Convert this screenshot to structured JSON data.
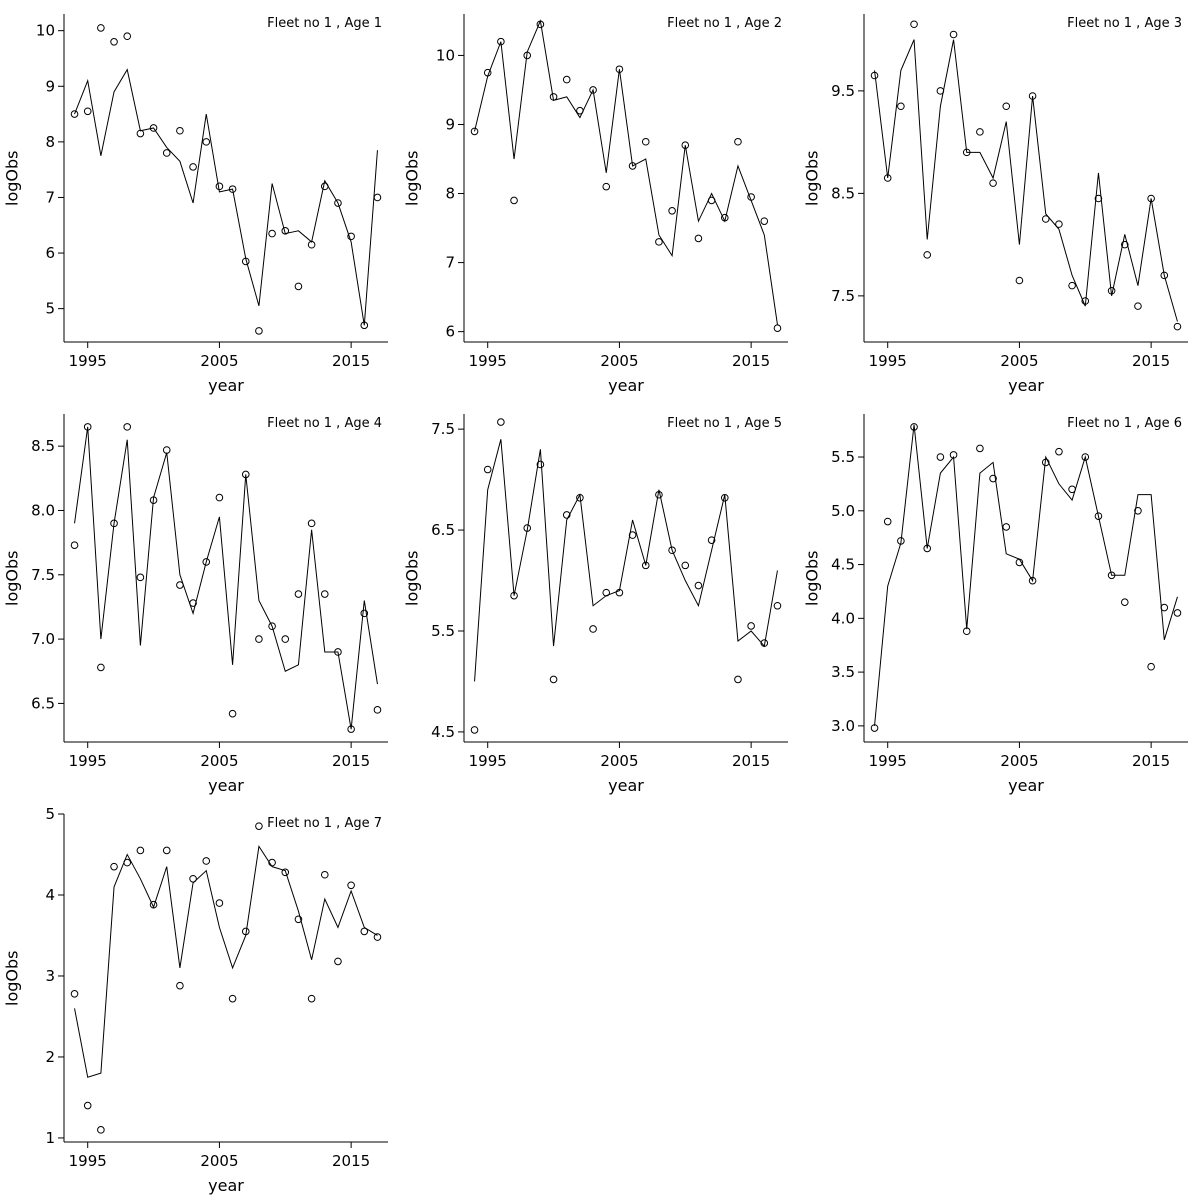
{
  "page": {
    "background": "#ffffff"
  },
  "colors": {
    "line": "#000000",
    "marker": "#000000",
    "text": "#000000"
  },
  "years": [
    1994,
    1995,
    1996,
    1997,
    1998,
    1999,
    2000,
    2001,
    2002,
    2003,
    2004,
    2005,
    2006,
    2007,
    2008,
    2009,
    2010,
    2011,
    2012,
    2013,
    2014,
    2015,
    2016,
    2017
  ],
  "chart_data": [
    {
      "type": "line",
      "title": "Fleet no 1 , Age 1",
      "xlabel": "year",
      "ylabel": "logObs",
      "xlim": [
        1993.2,
        2017.8
      ],
      "ylim": [
        4.4,
        10.3
      ],
      "xtick_values": [
        1995,
        2005,
        2015
      ],
      "xtick_labels": [
        "1995",
        "2005",
        "2015"
      ],
      "ytick_values": [
        5,
        6,
        7,
        8,
        9,
        10
      ],
      "ytick_labels": [
        "5",
        "6",
        "7",
        "8",
        "9",
        "10"
      ],
      "series": [
        {
          "name": "observations",
          "style": "points",
          "marker": "open-circle",
          "values": [
            8.5,
            8.55,
            10.05,
            9.8,
            9.9,
            8.15,
            8.25,
            7.8,
            8.2,
            7.55,
            8.0,
            7.2,
            7.15,
            5.85,
            4.6,
            6.35,
            6.4,
            5.4,
            6.15,
            7.2,
            6.9,
            6.3,
            4.7,
            7.0
          ]
        },
        {
          "name": "fit",
          "style": "line",
          "values": [
            8.5,
            9.1,
            7.75,
            8.9,
            9.3,
            8.2,
            8.25,
            7.9,
            7.65,
            6.9,
            8.5,
            7.1,
            7.15,
            5.9,
            5.05,
            7.25,
            6.35,
            6.4,
            6.2,
            7.3,
            6.9,
            6.2,
            4.7,
            7.85
          ]
        }
      ]
    },
    {
      "type": "line",
      "title": "Fleet no 1 , Age 2",
      "xlabel": "year",
      "ylabel": "logObs",
      "xlim": [
        1993.2,
        2017.8
      ],
      "ylim": [
        5.85,
        10.6
      ],
      "xtick_values": [
        1995,
        2005,
        2015
      ],
      "xtick_labels": [
        "1995",
        "2005",
        "2015"
      ],
      "ytick_values": [
        6,
        7,
        8,
        9,
        10
      ],
      "ytick_labels": [
        "6",
        "7",
        "8",
        "9",
        "10"
      ],
      "series": [
        {
          "name": "observations",
          "style": "points",
          "marker": "open-circle",
          "values": [
            8.9,
            9.75,
            10.2,
            7.9,
            10.0,
            10.45,
            9.4,
            9.65,
            9.2,
            9.5,
            8.1,
            9.8,
            8.4,
            8.75,
            7.3,
            7.75,
            8.7,
            7.35,
            7.9,
            7.65,
            8.75,
            7.95,
            7.6,
            6.05
          ]
        },
        {
          "name": "fit",
          "style": "line",
          "values": [
            8.9,
            9.7,
            10.2,
            8.5,
            10.05,
            10.5,
            9.35,
            9.4,
            9.1,
            9.5,
            8.3,
            9.8,
            8.4,
            8.5,
            7.4,
            7.1,
            8.7,
            7.6,
            8.0,
            7.6,
            8.4,
            7.9,
            7.4,
            6.1
          ]
        }
      ]
    },
    {
      "type": "line",
      "title": "Fleet no 1 , Age 3",
      "xlabel": "year",
      "ylabel": "logObs",
      "xlim": [
        1993.2,
        2017.8
      ],
      "ylim": [
        7.05,
        10.25
      ],
      "xtick_values": [
        1995,
        2005,
        2015
      ],
      "xtick_labels": [
        "1995",
        "2005",
        "2015"
      ],
      "ytick_values": [
        7.5,
        8.5,
        9.5
      ],
      "ytick_labels": [
        "7.5",
        "8.5",
        "9.5"
      ],
      "series": [
        {
          "name": "observations",
          "style": "points",
          "marker": "open-circle",
          "values": [
            9.65,
            8.65,
            9.35,
            10.15,
            7.9,
            9.5,
            10.05,
            8.9,
            9.1,
            8.6,
            9.35,
            7.65,
            9.45,
            8.25,
            8.2,
            7.6,
            7.45,
            8.45,
            7.55,
            8.0,
            7.4,
            8.45,
            7.7,
            7.2
          ]
        },
        {
          "name": "fit",
          "style": "line",
          "values": [
            9.7,
            8.65,
            9.7,
            10.0,
            8.05,
            9.35,
            10.0,
            8.9,
            8.9,
            8.65,
            9.2,
            8.0,
            9.45,
            8.3,
            8.15,
            7.7,
            7.4,
            8.7,
            7.5,
            8.1,
            7.6,
            8.45,
            7.7,
            7.25
          ]
        }
      ]
    },
    {
      "type": "line",
      "title": "Fleet no 1 , Age 4",
      "xlabel": "year",
      "ylabel": "logObs",
      "xlim": [
        1993.2,
        2017.8
      ],
      "ylim": [
        6.2,
        8.75
      ],
      "xtick_values": [
        1995,
        2005,
        2015
      ],
      "xtick_labels": [
        "1995",
        "2005",
        "2015"
      ],
      "ytick_values": [
        6.5,
        7.0,
        7.5,
        8.0,
        8.5
      ],
      "ytick_labels": [
        "6.5",
        "7.0",
        "7.5",
        "8.0",
        "8.5"
      ],
      "series": [
        {
          "name": "observations",
          "style": "points",
          "marker": "open-circle",
          "values": [
            7.73,
            8.65,
            6.78,
            7.9,
            8.65,
            7.48,
            8.08,
            8.47,
            7.42,
            7.28,
            7.6,
            8.1,
            6.42,
            8.28,
            7.0,
            7.1,
            7.0,
            7.35,
            7.9,
            7.35,
            6.9,
            6.3,
            7.2,
            6.45
          ]
        },
        {
          "name": "fit",
          "style": "line",
          "values": [
            7.9,
            8.65,
            7.0,
            7.9,
            8.55,
            6.95,
            8.1,
            8.45,
            7.5,
            7.2,
            7.6,
            7.95,
            6.8,
            8.28,
            7.3,
            7.1,
            6.75,
            6.8,
            7.85,
            6.9,
            6.9,
            6.3,
            7.3,
            6.65
          ]
        }
      ]
    },
    {
      "type": "line",
      "title": "Fleet no 1 , Age 5",
      "xlabel": "year",
      "ylabel": "logObs",
      "xlim": [
        1993.2,
        2017.8
      ],
      "ylim": [
        4.4,
        7.65
      ],
      "xtick_values": [
        1995,
        2005,
        2015
      ],
      "xtick_labels": [
        "1995",
        "2005",
        "2015"
      ],
      "ytick_values": [
        4.5,
        5.5,
        6.5,
        7.5
      ],
      "ytick_labels": [
        "4.5",
        "5.5",
        "6.5",
        "7.5"
      ],
      "series": [
        {
          "name": "observations",
          "style": "points",
          "marker": "open-circle",
          "values": [
            4.52,
            7.1,
            7.57,
            5.85,
            6.52,
            7.15,
            5.02,
            6.65,
            6.82,
            5.52,
            5.88,
            5.88,
            6.45,
            6.15,
            6.85,
            6.3,
            6.15,
            5.95,
            6.4,
            6.82,
            5.02,
            5.55,
            5.38,
            5.75
          ]
        },
        {
          "name": "fit",
          "style": "line",
          "values": [
            5.0,
            6.9,
            7.4,
            5.85,
            6.5,
            7.3,
            5.35,
            6.6,
            6.85,
            5.75,
            5.85,
            5.9,
            6.6,
            6.15,
            6.9,
            6.3,
            6.0,
            5.75,
            6.3,
            6.85,
            5.4,
            5.5,
            5.35,
            6.1
          ]
        }
      ]
    },
    {
      "type": "line",
      "title": "Fleet no 1 , Age 6",
      "xlabel": "year",
      "ylabel": "logObs",
      "xlim": [
        1993.2,
        2017.8
      ],
      "ylim": [
        2.85,
        5.9
      ],
      "xtick_values": [
        1995,
        2005,
        2015
      ],
      "xtick_labels": [
        "1995",
        "2005",
        "2015"
      ],
      "ytick_values": [
        3.0,
        3.5,
        4.0,
        4.5,
        5.0,
        5.5
      ],
      "ytick_labels": [
        "3.0",
        "3.5",
        "4.0",
        "4.5",
        "5.0",
        "5.5"
      ],
      "series": [
        {
          "name": "observations",
          "style": "points",
          "marker": "open-circle",
          "values": [
            2.98,
            4.9,
            4.72,
            5.78,
            4.65,
            5.5,
            5.52,
            3.88,
            5.58,
            5.3,
            4.85,
            4.52,
            4.35,
            5.45,
            5.55,
            5.2,
            5.5,
            4.95,
            4.4,
            4.15,
            5.0,
            3.55,
            4.1,
            4.05
          ]
        },
        {
          "name": "fit",
          "style": "line",
          "values": [
            3.0,
            4.3,
            4.7,
            5.8,
            4.65,
            5.35,
            5.5,
            3.9,
            5.35,
            5.45,
            4.6,
            4.55,
            4.35,
            5.5,
            5.25,
            5.1,
            5.5,
            4.95,
            4.4,
            4.4,
            5.15,
            5.15,
            3.8,
            4.2
          ]
        }
      ]
    },
    {
      "type": "line",
      "title": "Fleet no 1 , Age 7",
      "xlabel": "year",
      "ylabel": "logObs",
      "xlim": [
        1993.2,
        2017.8
      ],
      "ylim": [
        0.95,
        5.0
      ],
      "xtick_values": [
        1995,
        2005,
        2015
      ],
      "xtick_labels": [
        "1995",
        "2005",
        "2015"
      ],
      "ytick_values": [
        1,
        2,
        3,
        4,
        5
      ],
      "ytick_labels": [
        "1",
        "2",
        "3",
        "4",
        "5"
      ],
      "series": [
        {
          "name": "observations",
          "style": "points",
          "marker": "open-circle",
          "values": [
            2.78,
            1.4,
            1.1,
            4.35,
            4.4,
            4.55,
            3.88,
            4.55,
            2.88,
            4.2,
            4.42,
            3.9,
            2.72,
            3.55,
            4.85,
            4.4,
            4.28,
            3.7,
            2.72,
            4.25,
            3.18,
            4.12,
            3.55,
            3.48
          ]
        },
        {
          "name": "fit",
          "style": "line",
          "values": [
            2.6,
            1.75,
            1.8,
            4.1,
            4.5,
            4.2,
            3.85,
            4.35,
            3.1,
            4.15,
            4.3,
            3.6,
            3.1,
            3.5,
            4.6,
            4.35,
            4.3,
            3.8,
            3.2,
            3.95,
            3.6,
            4.05,
            3.6,
            3.5
          ]
        }
      ]
    }
  ]
}
